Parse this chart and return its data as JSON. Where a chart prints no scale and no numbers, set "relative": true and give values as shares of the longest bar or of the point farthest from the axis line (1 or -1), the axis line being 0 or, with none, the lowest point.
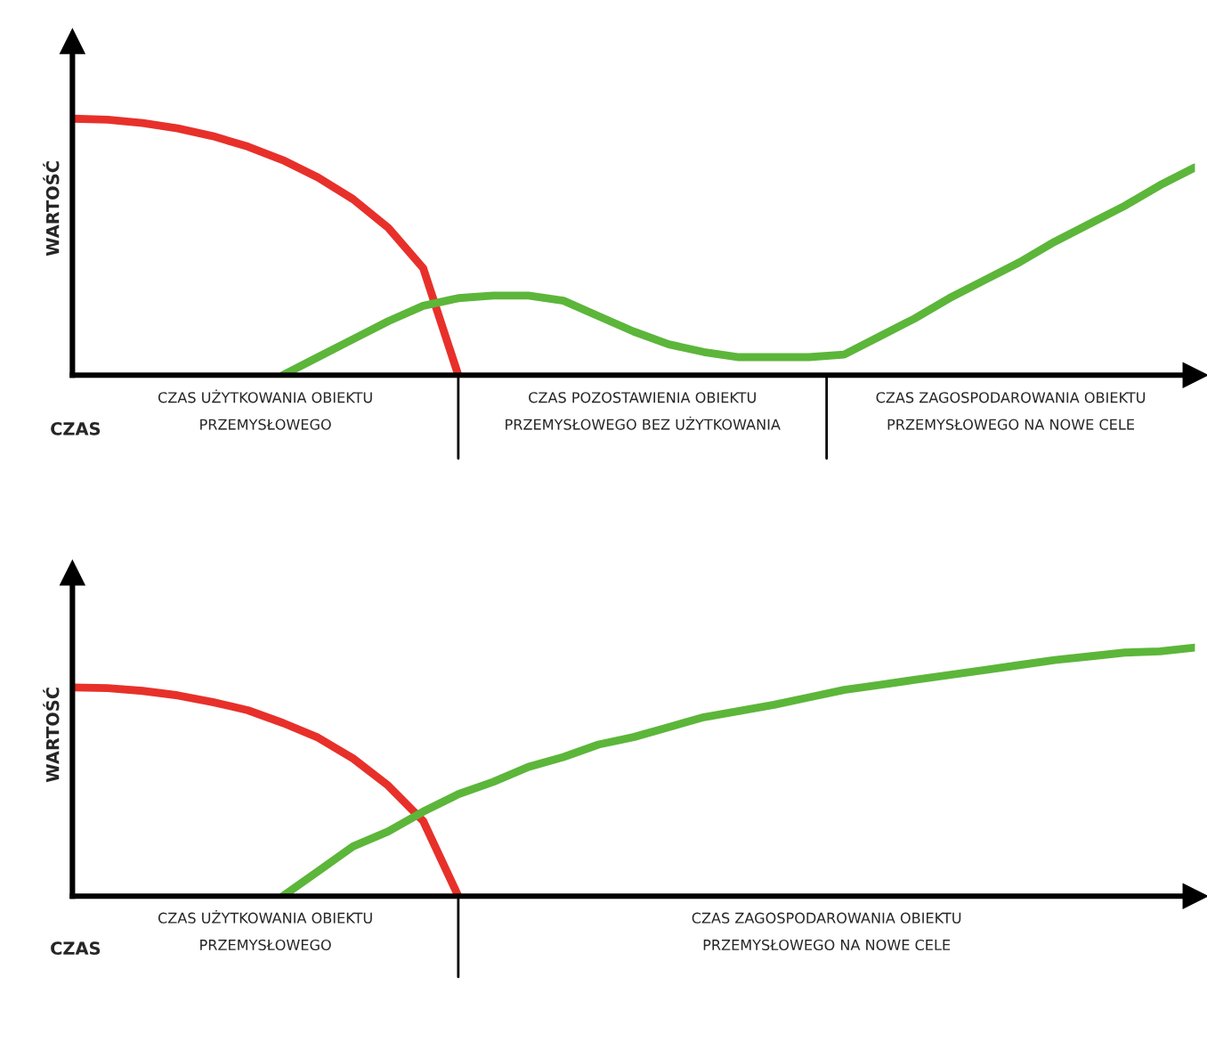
{
  "chart_data": [
    {
      "type": "line",
      "relative": true,
      "xlabel": "CZAS",
      "ylabel": "WARTOŚĆ",
      "marker": "none",
      "line_style": "solid",
      "categories": [
        null,
        null,
        null,
        null,
        null,
        null,
        null,
        null,
        null,
        null,
        null,
        null,
        null,
        null,
        null,
        null,
        null,
        null,
        null,
        null,
        null,
        null,
        null,
        null,
        null,
        null,
        null,
        null,
        null,
        null,
        null,
        null,
        null
      ],
      "series": [
        {
          "color": "#e8302a",
          "values": [
            1,
            0.996,
            0.983,
            0.962,
            0.932,
            0.891,
            0.838,
            0.771,
            0.686,
            0.575,
            0.417,
            0,
            null,
            null,
            null,
            null,
            null,
            null,
            null,
            null,
            null,
            null,
            null,
            null,
            null,
            null,
            null,
            null,
            null,
            null,
            null,
            null,
            null
          ]
        },
        {
          "color": "#5cb63a",
          "values": [
            null,
            null,
            null,
            null,
            null,
            null,
            0,
            0.07,
            0.14,
            0.21,
            0.27,
            0.3,
            0.31,
            0.31,
            0.29,
            0.23,
            0.17,
            0.12,
            0.09,
            0.07,
            0.07,
            0.07,
            0.08,
            0.15,
            0.22,
            0.3,
            0.37,
            0.44,
            0.52,
            0.59,
            0.66,
            0.74,
            0.81
          ]
        }
      ],
      "annotations": [
        "CZAS UŻYTKOWANIA OBIEKTU\nPRZEMYSŁOWEGO",
        "CZAS POZOSTAWIENIA OBIEKTU\nPRZEMYSŁOWEGO BEZ UŻYTKOWANIA",
        "CZAS ZAGOSPODAROWANIA OBIEKTU\nPRZEMYSŁOWEGO NA NOWE CELE"
      ]
    },
    {
      "type": "line",
      "relative": true,
      "xlabel": "CZAS",
      "ylabel": "WARTOŚĆ",
      "marker": "none",
      "line_style": "solid",
      "categories": [
        null,
        null,
        null,
        null,
        null,
        null,
        null,
        null,
        null,
        null,
        null,
        null,
        null,
        null,
        null,
        null,
        null,
        null,
        null,
        null,
        null,
        null,
        null,
        null,
        null,
        null,
        null,
        null,
        null,
        null,
        null,
        null,
        null
      ],
      "series": [
        {
          "color": "#e8302a",
          "values": [
            0.84,
            0.837,
            0.826,
            0.808,
            0.781,
            0.748,
            0.697,
            0.638,
            0.554,
            0.445,
            0.302,
            0,
            null,
            null,
            null,
            null,
            null,
            null,
            null,
            null,
            null,
            null,
            null,
            null,
            null,
            null,
            null,
            null,
            null,
            null,
            null,
            null,
            null
          ]
        },
        {
          "color": "#5cb63a",
          "values": [
            null,
            null,
            null,
            null,
            null,
            null,
            0,
            0.1,
            0.2,
            0.26,
            0.34,
            0.41,
            0.46,
            0.52,
            0.56,
            0.61,
            0.64,
            0.68,
            0.72,
            0.745,
            0.77,
            0.8,
            0.83,
            0.85,
            0.87,
            0.89,
            0.91,
            0.93,
            0.95,
            0.965,
            0.98,
            0.985,
            1
          ]
        }
      ],
      "annotations": [
        "CZAS UŻYTKOWANIA OBIEKTU\nPRZEMYSŁOWEGO",
        "CZAS ZAGOSPODAROWANIA OBIEKTU\nPRZEMYSŁOWEGO NA NOWE CELE"
      ]
    }
  ]
}
